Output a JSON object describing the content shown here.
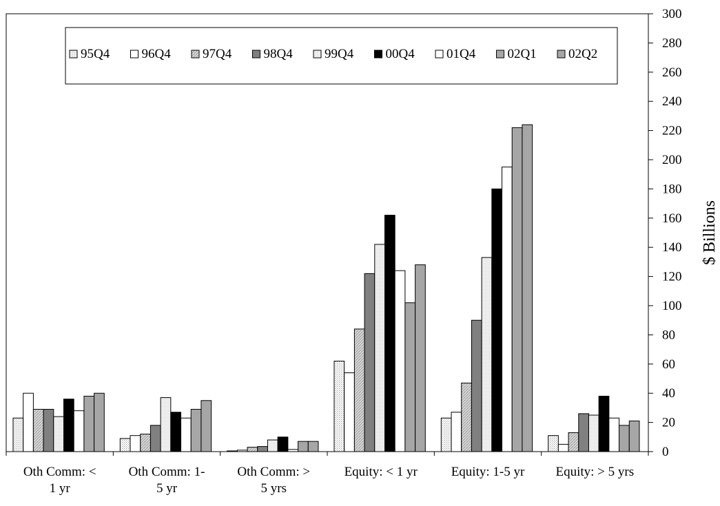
{
  "chart_data": {
    "type": "bar",
    "title": "",
    "xlabel": "",
    "ylabel": "$ Billions",
    "ylim": [
      0,
      300
    ],
    "ytick_step": 20,
    "y_axis_side": "right",
    "grid": false,
    "legend_position": "top",
    "categories": [
      [
        "Oth Comm: <",
        "1 yr"
      ],
      [
        "Oth Comm: 1-",
        "5 yr"
      ],
      [
        "Oth Comm: >",
        "5 yrs"
      ],
      [
        "Equity: < 1 yr"
      ],
      [
        "Equity: 1-5 yr"
      ],
      [
        "Equity: > 5 yrs"
      ]
    ],
    "series": [
      {
        "name": "95Q4",
        "color": "#ffffff",
        "pattern": "dots",
        "values": [
          23,
          9,
          0.5,
          62,
          23,
          11
        ]
      },
      {
        "name": "96Q4",
        "color": "#ffffff",
        "pattern": "none",
        "values": [
          40,
          11,
          1,
          54,
          27,
          5
        ]
      },
      {
        "name": "97Q4",
        "color": "#ffffff",
        "pattern": "hatch",
        "values": [
          29,
          12,
          3,
          84,
          47,
          13
        ]
      },
      {
        "name": "98Q4",
        "color": "#808080",
        "pattern": "none",
        "values": [
          29,
          18,
          3.5,
          122,
          90,
          26
        ]
      },
      {
        "name": "99Q4",
        "color": "#ffffff",
        "pattern": "fine",
        "values": [
          24,
          37,
          8,
          142,
          133,
          25
        ]
      },
      {
        "name": "00Q4",
        "color": "#000000",
        "pattern": "none",
        "values": [
          36,
          27,
          10,
          162,
          180,
          38
        ]
      },
      {
        "name": "01Q4",
        "color": "#ffffff",
        "pattern": "none",
        "values": [
          28,
          23,
          1.5,
          124,
          195,
          23
        ]
      },
      {
        "name": "02Q1",
        "color": "#a6a6a6",
        "pattern": "none",
        "values": [
          38,
          29,
          7,
          102,
          222,
          18
        ]
      },
      {
        "name": "02Q2",
        "color": "#a6a6a6",
        "pattern": "none",
        "values": [
          40,
          35,
          7,
          128,
          224,
          21
        ]
      }
    ]
  }
}
